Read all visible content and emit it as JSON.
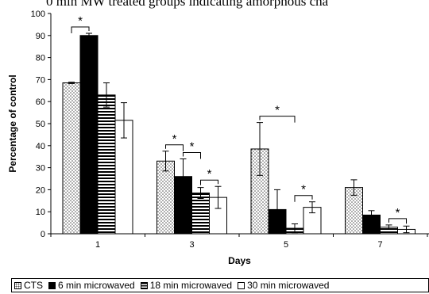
{
  "caption_fragment": "0 min MW treated groups indicating amorphous cha",
  "chart_data": {
    "type": "bar",
    "xlabel": "Days",
    "ylabel": "Percentage of control",
    "ylim": [
      0,
      100
    ],
    "yticks": [
      0,
      10,
      20,
      30,
      40,
      50,
      60,
      70,
      80,
      90,
      100
    ],
    "categories": [
      "1",
      "3",
      "5",
      "7"
    ],
    "series": [
      {
        "name": "CTS",
        "pattern": "dots",
        "values": [
          68.5,
          33,
          38.5,
          21
        ],
        "errors": [
          0.3,
          4.5,
          12,
          3.5
        ]
      },
      {
        "name": "6 min microwaved",
        "pattern": "solid",
        "values": [
          90,
          26,
          11,
          8.5
        ],
        "errors": [
          1,
          8,
          9,
          2
        ]
      },
      {
        "name": "18 min microwaved",
        "pattern": "stripes",
        "values": [
          63,
          18.5,
          2.5,
          3
        ],
        "errors": [
          5.5,
          2.5,
          2,
          1
        ]
      },
      {
        "name": "30 min microwaved",
        "pattern": "white",
        "values": [
          51.5,
          16.5,
          12,
          2
        ],
        "errors": [
          8,
          5,
          2.5,
          1.5
        ]
      }
    ],
    "significance": [
      {
        "category_index": 0,
        "from_series": 0,
        "to_series": 1,
        "label": "*"
      },
      {
        "category_index": 1,
        "from_series": 0,
        "to_series": 1,
        "label": "*"
      },
      {
        "category_index": 1,
        "from_series": 1,
        "to_series": 2,
        "label": "*"
      },
      {
        "category_index": 1,
        "from_series": 2,
        "to_series": 3,
        "label": "*"
      },
      {
        "category_index": 2,
        "from_series": 0,
        "to_series": 2,
        "label": "*"
      },
      {
        "category_index": 2,
        "from_series": 2,
        "to_series": 3,
        "label": "*"
      },
      {
        "category_index": 3,
        "from_series": 2,
        "to_series": 3,
        "label": "*"
      }
    ],
    "legend_placement": "bottom",
    "grid": false
  }
}
